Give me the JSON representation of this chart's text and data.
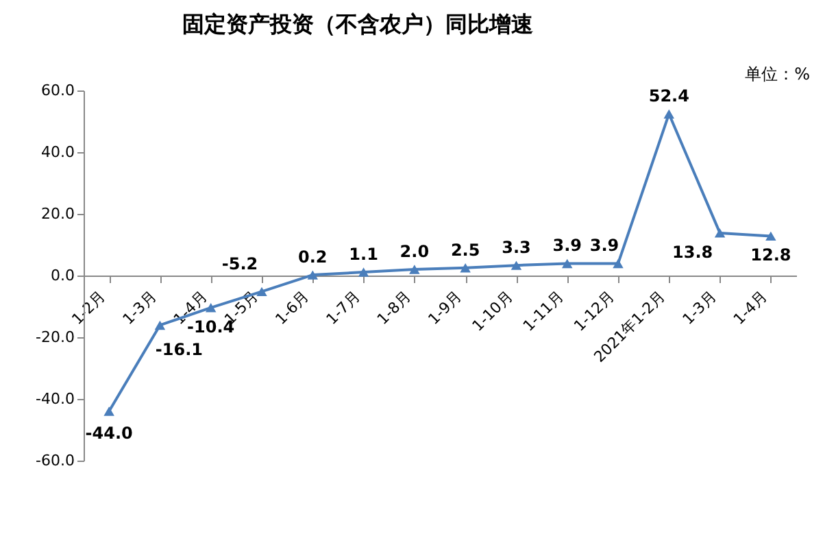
{
  "chart_data": {
    "type": "line",
    "title": "固定资产投资（不含农户）同比增速",
    "subtitle": "单位：%",
    "categories": [
      "1-2月",
      "1-3月",
      "1-4月",
      "1-5月",
      "1-6月",
      "1-7月",
      "1-8月",
      "1-9月",
      "1-10月",
      "1-11月",
      "1-12月",
      "2021年1-2月",
      "1-3月",
      "1-4月"
    ],
    "series": [
      {
        "color": "#4a7ebb",
        "values": [
          -44.0,
          -16.1,
          -10.4,
          -5.2,
          0.2,
          1.1,
          2.0,
          2.5,
          3.3,
          3.9,
          3.9,
          52.4,
          13.8,
          12.8
        ],
        "value_labels": [
          "-44.0",
          "-16.1",
          "-10.4",
          "-5.2",
          "0.2",
          "1.1",
          "2.0",
          "2.5",
          "3.3",
          "3.9",
          "3.9",
          "52.4",
          "13.8",
          "12.8"
        ]
      }
    ],
    "ylim": [
      -60,
      60
    ],
    "yticks": [
      {
        "value": -60,
        "label": "-60.0"
      },
      {
        "value": -40,
        "label": "-40.0"
      },
      {
        "value": -20,
        "label": "-20.0"
      },
      {
        "value": 0,
        "label": "0.0"
      },
      {
        "value": 20,
        "label": "20.0"
      },
      {
        "value": 40,
        "label": "40.0"
      },
      {
        "value": 60,
        "label": "60.0"
      }
    ],
    "marker": "triangle",
    "line_style": "solid",
    "grid": false,
    "data_labels": true
  }
}
